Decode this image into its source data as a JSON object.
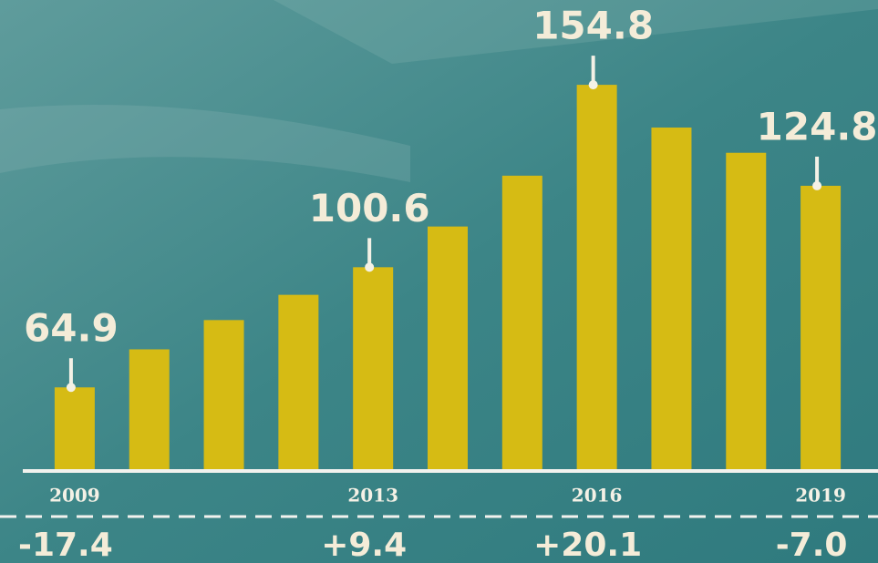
{
  "chart_data": {
    "type": "bar",
    "categories": [
      "2009",
      null,
      null,
      null,
      "2013",
      null,
      null,
      "2016",
      null,
      null,
      "2019"
    ],
    "values": [
      64.9,
      76.2,
      84.9,
      92.4,
      100.6,
      112.7,
      127.8,
      154.8,
      142.1,
      134.6,
      124.8
    ],
    "value_labels": [
      "64.9",
      null,
      null,
      null,
      "100.6",
      null,
      null,
      "154.8",
      null,
      null,
      "124.8"
    ],
    "growth_labels": [
      "-17.4",
      null,
      null,
      null,
      "+9.4",
      null,
      null,
      "+20.1",
      null,
      null,
      "-7.0"
    ],
    "color": "#d6bb14",
    "ylim": [
      40.6,
      180
    ]
  }
}
